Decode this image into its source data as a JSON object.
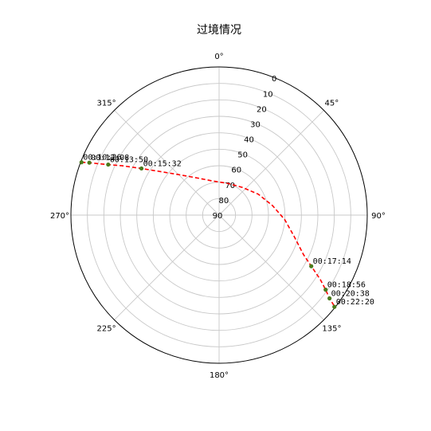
{
  "chart_data": {
    "type": "scatter",
    "projection": "polar",
    "title": "过境情况",
    "theta_zero": "N",
    "theta_direction": "clockwise",
    "r_axis": {
      "inverted": true,
      "range": [
        0,
        90
      ],
      "ticks": [
        0,
        10,
        20,
        30,
        40,
        50,
        60,
        70,
        80,
        90
      ],
      "tick_labels": [
        "0",
        "10",
        "20",
        "30",
        "40",
        "50",
        "60",
        "70",
        "80",
        "90"
      ],
      "label_angle": 22.5
    },
    "theta_axis": {
      "ticks": [
        0,
        45,
        90,
        135,
        180,
        225,
        270,
        315
      ],
      "tick_labels": [
        "0°",
        "45°",
        "90°",
        "135°",
        "180°",
        "225°",
        "270°",
        "315°"
      ]
    },
    "grid": true,
    "track": {
      "style": "dashed",
      "color": "#ff0000",
      "points": [
        {
          "azimuth": 291.0,
          "elevation": 0.5
        },
        {
          "azimuth": 292.0,
          "elevation": 5.0
        },
        {
          "azimuth": 293.0,
          "elevation": 10.0
        },
        {
          "azimuth": 294.5,
          "elevation": 16.0
        },
        {
          "azimuth": 297.0,
          "elevation": 24.0
        },
        {
          "azimuth": 301.0,
          "elevation": 35.0
        },
        {
          "azimuth": 307.5,
          "elevation": 47.0
        },
        {
          "azimuth": 316.0,
          "elevation": 56.0
        },
        {
          "azimuth": 330.0,
          "elevation": 64.0
        },
        {
          "azimuth": 350.0,
          "elevation": 69.0
        },
        {
          "azimuth": 15.0,
          "elevation": 70.0
        },
        {
          "azimuth": 40.0,
          "elevation": 68.0
        },
        {
          "azimuth": 62.0,
          "elevation": 63.0
        },
        {
          "azimuth": 80.0,
          "elevation": 57.0
        },
        {
          "azimuth": 94.0,
          "elevation": 50.0
        },
        {
          "azimuth": 106.0,
          "elevation": 42.5
        },
        {
          "azimuth": 115.0,
          "elevation": 33.5
        },
        {
          "azimuth": 119.0,
          "elevation": 26.0
        },
        {
          "azimuth": 122.5,
          "elevation": 17.0
        },
        {
          "azimuth": 125.0,
          "elevation": 11.0
        },
        {
          "azimuth": 127.0,
          "elevation": 6.0
        },
        {
          "azimuth": 128.0,
          "elevation": 2.0
        },
        {
          "azimuth": 128.5,
          "elevation": 0.5
        }
      ]
    },
    "markers": [
      {
        "time": "00:10:26",
        "azimuth": 291.0,
        "elevation": 0.5
      },
      {
        "time": "00:12:08",
        "azimuth": 292.0,
        "elevation": 5.0
      },
      {
        "time": "00:13:50",
        "azimuth": 294.5,
        "elevation": 16.0
      },
      {
        "time": "00:15:32",
        "azimuth": 301.0,
        "elevation": 35.0
      },
      {
        "time": "00:17:14",
        "azimuth": 119.0,
        "elevation": 26.0
      },
      {
        "time": "00:18:56",
        "azimuth": 125.0,
        "elevation": 11.0
      },
      {
        "time": "00:20:38",
        "azimuth": 127.0,
        "elevation": 6.0
      },
      {
        "time": "00:22:20",
        "azimuth": 128.5,
        "elevation": 0.5
      }
    ],
    "colors": {
      "track": "#ff0000",
      "marker": "#4a7a1c",
      "grid": "#c8c8c8",
      "frame": "#000000"
    }
  }
}
